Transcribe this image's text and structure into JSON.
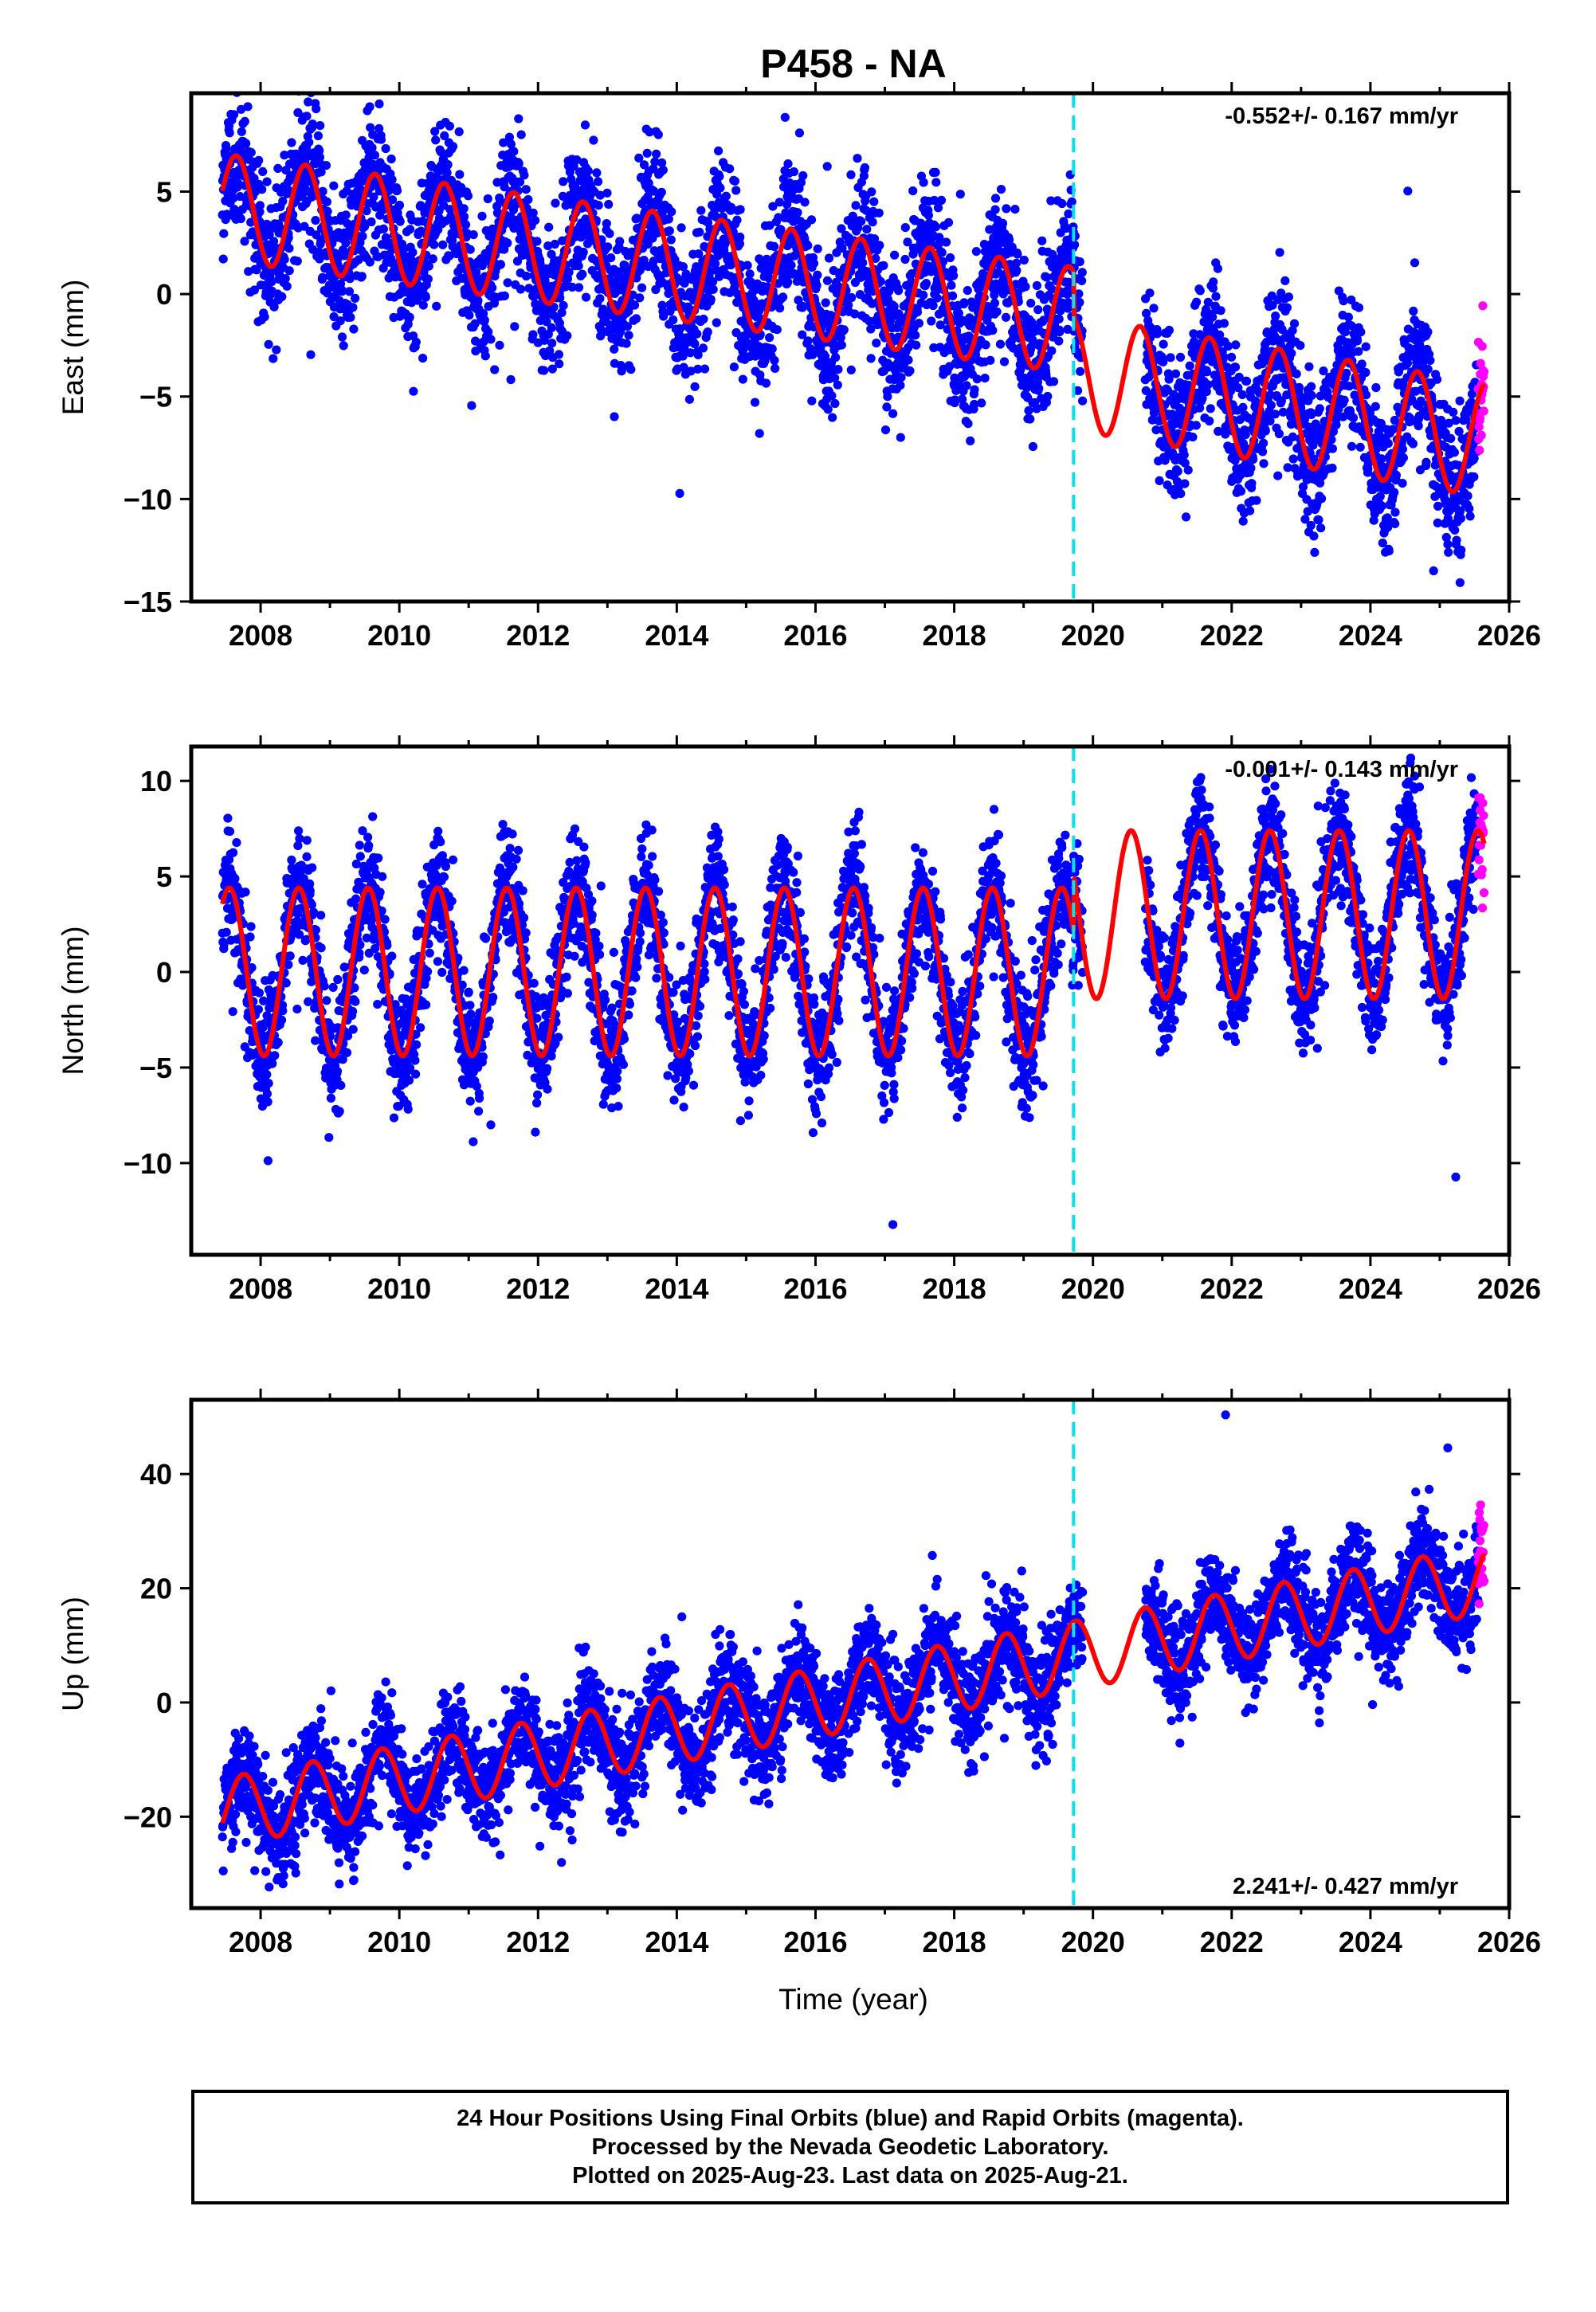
{
  "title": "P458 - NA",
  "xlabel": "Time (year)",
  "footer": {
    "line1": "24 Hour Positions Using Final Orbits (blue) and Rapid Orbits (magenta).",
    "line2": "Processed by the Nevada Geodetic Laboratory.",
    "line3": "Plotted on 2025-Aug-23. Last data on 2025-Aug-21."
  },
  "colors": {
    "final_orbits": "#0000ff",
    "rapid_orbits": "#ff00ff",
    "model_fit": "#ff0000",
    "event_line": "#00e5ee"
  },
  "chart_data": [
    {
      "type": "scatter",
      "panel": "east",
      "ylabel": "East (mm)",
      "rate_text": "-0.552+/- 0.167 mm/yr",
      "rate_position": "top-right",
      "xlim": [
        2007.0,
        2026.0
      ],
      "ylim": [
        -15.0,
        9.8
      ],
      "xticks": [
        2008,
        2010,
        2012,
        2014,
        2016,
        2018,
        2020,
        2022,
        2024,
        2026
      ],
      "yticks": [
        5,
        0,
        -5,
        -10,
        -15
      ],
      "data_start": 2007.45,
      "data_end": 2025.64,
      "data_gap": [
        2019.85,
        2020.75
      ],
      "rapid_orbits_start": 2025.55,
      "event_line_x": 2019.72,
      "grid": false,
      "model": {
        "segments": [
          {
            "x0": 2007.45,
            "x1": 2019.72,
            "offset_at_2008": 4.0,
            "slope_mm_per_yr": -0.45,
            "amplitude": 2.6,
            "peak_phase_yr": 0.65
          },
          {
            "x0": 2019.72,
            "x1": 2025.64,
            "offset_at_2008": 2.6,
            "slope_mm_per_yr": -0.55,
            "amplitude": 2.8,
            "peak_phase_yr": 0.68
          }
        ],
        "noise_std_mm": 1.8
      }
    },
    {
      "type": "scatter",
      "panel": "north",
      "ylabel": "North (mm)",
      "rate_text": "-0.001+/- 0.143 mm/yr",
      "rate_position": "top-right",
      "xlim": [
        2007.0,
        2026.0
      ],
      "ylim": [
        -14.8,
        11.8
      ],
      "xticks": [
        2008,
        2010,
        2012,
        2014,
        2016,
        2018,
        2020,
        2022,
        2024,
        2026
      ],
      "yticks": [
        10,
        5,
        0,
        -5,
        -10
      ],
      "data_start": 2007.45,
      "data_end": 2025.64,
      "data_gap": [
        2019.85,
        2020.75
      ],
      "rapid_orbits_start": 2025.55,
      "event_line_x": 2019.72,
      "grid": false,
      "model": {
        "segments": [
          {
            "x0": 2007.45,
            "x1": 2019.72,
            "offset_at_2008": 0.0,
            "slope_mm_per_yr": 0.0,
            "amplitude": 4.4,
            "peak_phase_yr": 0.55
          },
          {
            "x0": 2019.72,
            "x1": 2025.64,
            "offset_at_2008": 3.0,
            "slope_mm_per_yr": 0.0,
            "amplitude": 4.4,
            "peak_phase_yr": 0.55
          }
        ],
        "noise_std_mm": 1.6
      }
    },
    {
      "type": "scatter",
      "panel": "up",
      "ylabel": "Up (mm)",
      "rate_text": "2.241+/- 0.427 mm/yr",
      "rate_position": "bottom-right",
      "xlim": [
        2007.0,
        2026.0
      ],
      "ylim": [
        -36.0,
        53.0
      ],
      "xticks": [
        2008,
        2010,
        2012,
        2014,
        2016,
        2018,
        2020,
        2022,
        2024,
        2026
      ],
      "yticks": [
        40,
        20,
        0,
        -20
      ],
      "data_start": 2007.45,
      "data_end": 2025.64,
      "data_gap": [
        2019.85,
        2020.75
      ],
      "rapid_orbits_start": 2025.55,
      "event_line_x": 2019.72,
      "grid": false,
      "model": {
        "segments": [
          {
            "x0": 2007.45,
            "x1": 2025.64,
            "offset_at_2008": -18.0,
            "slope_mm_per_yr": 2.24,
            "amplitude": 6.0,
            "peak_phase_yr": 0.75
          }
        ],
        "noise_std_mm": 4.5
      }
    }
  ]
}
